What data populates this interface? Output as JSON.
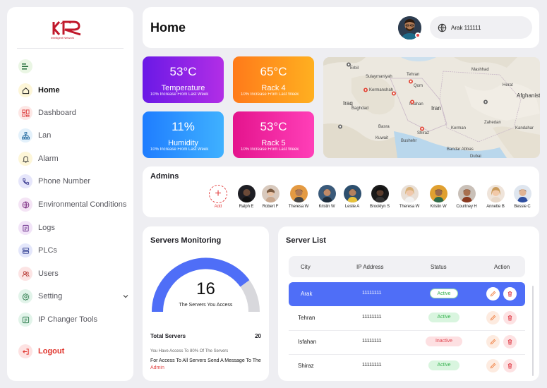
{
  "logo": {
    "text": "Intelligent Network"
  },
  "sidebar": {
    "items": [
      {
        "label": "Home"
      },
      {
        "label": "Dashboard"
      },
      {
        "label": "Lan"
      },
      {
        "label": "Alarm"
      },
      {
        "label": "Phone Number"
      },
      {
        "label": "Environmental Conditions"
      },
      {
        "label": "Logs"
      },
      {
        "label": "PLCs"
      },
      {
        "label": "Users"
      },
      {
        "label": "Setting"
      },
      {
        "label": "IP Changer Tools"
      }
    ],
    "logout": "Logout"
  },
  "header": {
    "title": "Home",
    "location": "Arak  111111"
  },
  "stats": {
    "temperature": {
      "value": "53°C",
      "title": "Temperature",
      "sub": "10% Increase From Last Week"
    },
    "rack4": {
      "value": "65°C",
      "title": "Rack 4",
      "sub": "10% Increase From Last Week"
    },
    "humidity": {
      "value": "11%",
      "title": "Humidity",
      "sub": "10% Increase From Last Week"
    },
    "rack5": {
      "value": "53°C",
      "title": "Rack 5",
      "sub": "10% Increase From Last Week"
    }
  },
  "map": {
    "labels": [
      "Iraq",
      "Iran",
      "Afghanist",
      "Tehran",
      "Erbil",
      "Kermanshah",
      "Qom",
      "Isfahan",
      "Basra",
      "Kuwait",
      "Shiraz",
      "Bushehr",
      "Kerman",
      "Zahedan",
      "Mashhad",
      "Sulaymaniyah",
      "Herat",
      "Kandahar",
      "Baghdad",
      "Bandar Abbas",
      "Dubai"
    ]
  },
  "admins": {
    "title": "Admins",
    "add_label": "Add",
    "people": [
      {
        "name": "Ralph E"
      },
      {
        "name": "Robert F"
      },
      {
        "name": "Theresa W"
      },
      {
        "name": "Kristin W"
      },
      {
        "name": "Leslie A"
      },
      {
        "name": "Brooklyn S"
      },
      {
        "name": "Theresa W"
      },
      {
        "name": "Kristin W"
      },
      {
        "name": "Courtney H"
      },
      {
        "name": "Annette B"
      },
      {
        "name": "Bessie C"
      }
    ]
  },
  "monitoring": {
    "title": "Servers Monitoring",
    "count": "16",
    "caption": "The Servers You Access",
    "gauge_fraction": 0.8,
    "total_label": "Total Servers",
    "total_value": "20",
    "access_note": "You Have Access To 80% Of The Servers",
    "access_msg": "For Access To All Servers Send A Message To The ",
    "admin_link": "Admin"
  },
  "server_list": {
    "title": "Server List",
    "columns": [
      "City",
      "IP Address",
      "Status",
      "Action"
    ],
    "rows": [
      {
        "city": "Arak",
        "ip": "11111111",
        "status": "Active"
      },
      {
        "city": "Tehran",
        "ip": "11111111",
        "status": "Active"
      },
      {
        "city": "Isfahan",
        "ip": "11111111",
        "status": "Inactive"
      },
      {
        "city": "Shiraz",
        "ip": "11111111",
        "status": "Active"
      }
    ]
  },
  "colors": {
    "accent": "#4f6ef7",
    "danger": "#e34646",
    "active": "#36b24f"
  }
}
